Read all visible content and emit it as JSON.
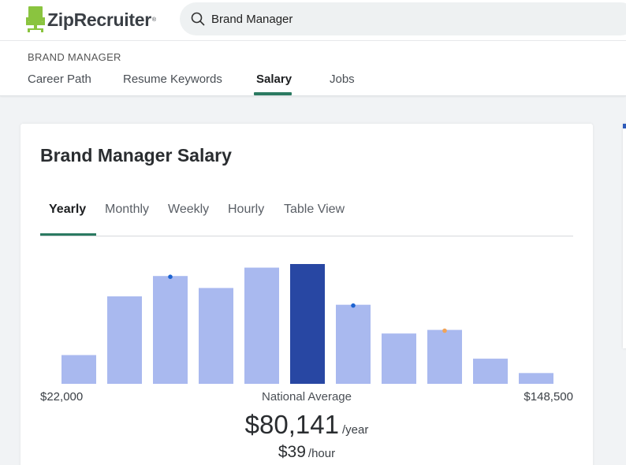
{
  "header": {
    "logo_text": "ZipRecruiter",
    "logo_mark": "®",
    "search_value": "Brand Manager"
  },
  "subnav": {
    "breadcrumb": "BRAND MANAGER",
    "tabs": [
      {
        "label": "Career Path",
        "active": false
      },
      {
        "label": "Resume Keywords",
        "active": false
      },
      {
        "label": "Salary",
        "active": true
      },
      {
        "label": "Jobs",
        "active": false
      }
    ]
  },
  "card": {
    "title": "Brand Manager Salary",
    "tabs": [
      {
        "label": "Yearly",
        "active": true
      },
      {
        "label": "Monthly",
        "active": false
      },
      {
        "label": "Weekly",
        "active": false
      },
      {
        "label": "Hourly",
        "active": false
      },
      {
        "label": "Table View",
        "active": false
      }
    ],
    "range_min": "$22,000",
    "range_max": "$148,500",
    "average_label": "National Average",
    "yearly_value": "$80,141",
    "yearly_unit": "/year",
    "hourly_value": "$39",
    "hourly_unit": "/hour"
  },
  "colors": {
    "accent": "#2b7a61",
    "bar": "#a9b9ef",
    "bar_highlight": "#2847a3",
    "marker_blue": "#1d63d1",
    "marker_orange": "#f0a45a"
  },
  "chart_data": {
    "type": "bar",
    "x_range": [
      "$22,000",
      "$148,500"
    ],
    "values": [
      24,
      73,
      90,
      80,
      97,
      100,
      66,
      42,
      45,
      21,
      9
    ],
    "highlight_index": 5,
    "markers": [
      {
        "bar_index": 2,
        "color": "blue"
      },
      {
        "bar_index": 6,
        "color": "blue"
      },
      {
        "bar_index": 8,
        "color": "orange"
      }
    ]
  }
}
